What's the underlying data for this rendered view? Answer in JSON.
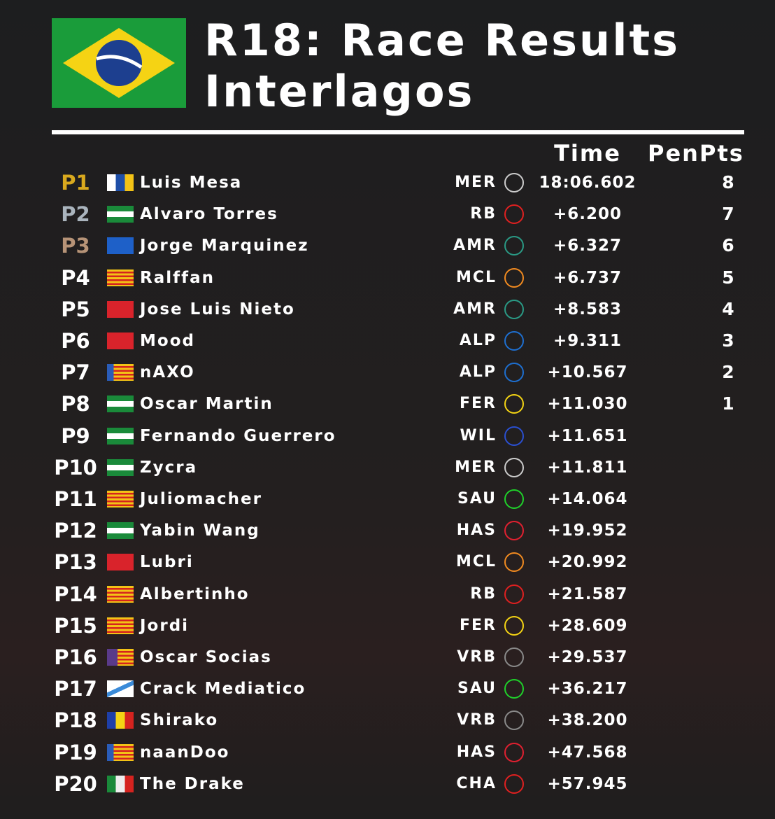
{
  "header": {
    "title": "R18: Race Results",
    "subtitle": "Interlagos"
  },
  "table": {
    "columns": [
      "Time",
      "Pen",
      "Pts"
    ],
    "rows": [
      {
        "position": "P1",
        "driver": "Luis Mesa",
        "team": "MER",
        "time": "18:06.602",
        "points": 8
      },
      {
        "position": "P2",
        "driver": "Alvaro Torres",
        "team": "RB",
        "time": "+6.200",
        "points": 7
      },
      {
        "position": "P3",
        "driver": "Jorge Marquinez",
        "team": "AMR",
        "time": "+6.327",
        "points": 6
      },
      {
        "position": "P4",
        "driver": "Ralffan",
        "team": "MCL",
        "time": "+6.737",
        "points": 5
      },
      {
        "position": "P5",
        "driver": "Jose Luis Nieto",
        "team": "AMR",
        "time": "+8.583",
        "points": 4
      },
      {
        "position": "P6",
        "driver": "Mood",
        "team": "ALP",
        "time": "+9.311",
        "points": 3
      },
      {
        "position": "P7",
        "driver": "nAXO",
        "team": "ALP",
        "time": "+10.567",
        "points": 2
      },
      {
        "position": "P8",
        "driver": "Oscar Martin",
        "team": "FER",
        "time": "+11.030",
        "points": 1
      },
      {
        "position": "P9",
        "driver": "Fernando Guerrero",
        "team": "WIL",
        "time": "+11.651"
      },
      {
        "position": "P10",
        "driver": "Zycra",
        "team": "MER",
        "time": "+11.811"
      },
      {
        "position": "P11",
        "driver": "Juliomacher",
        "team": "SAU",
        "time": "+14.064"
      },
      {
        "position": "P12",
        "driver": "Yabin Wang",
        "team": "HAS",
        "time": "+19.952"
      },
      {
        "position": "P13",
        "driver": "Lubri",
        "team": "MCL",
        "time": "+20.992"
      },
      {
        "position": "P14",
        "driver": "Albertinho",
        "team": "RB",
        "time": "+21.587"
      },
      {
        "position": "P15",
        "driver": "Jordi",
        "team": "FER",
        "time": "+28.609"
      },
      {
        "position": "P16",
        "driver": "Oscar Socias",
        "team": "VRB",
        "time": "+29.537"
      },
      {
        "position": "P17",
        "driver": "Crack Mediatico",
        "team": "SAU",
        "time": "+36.217"
      },
      {
        "position": "P18",
        "driver": "Shirako",
        "team": "VRB",
        "time": "+38.200"
      },
      {
        "position": "P19",
        "driver": "naanDoo",
        "team": "HAS",
        "time": "+47.568"
      },
      {
        "position": "P20",
        "driver": "The Drake",
        "team": "CHA",
        "time": "+57.945"
      }
    ]
  }
}
